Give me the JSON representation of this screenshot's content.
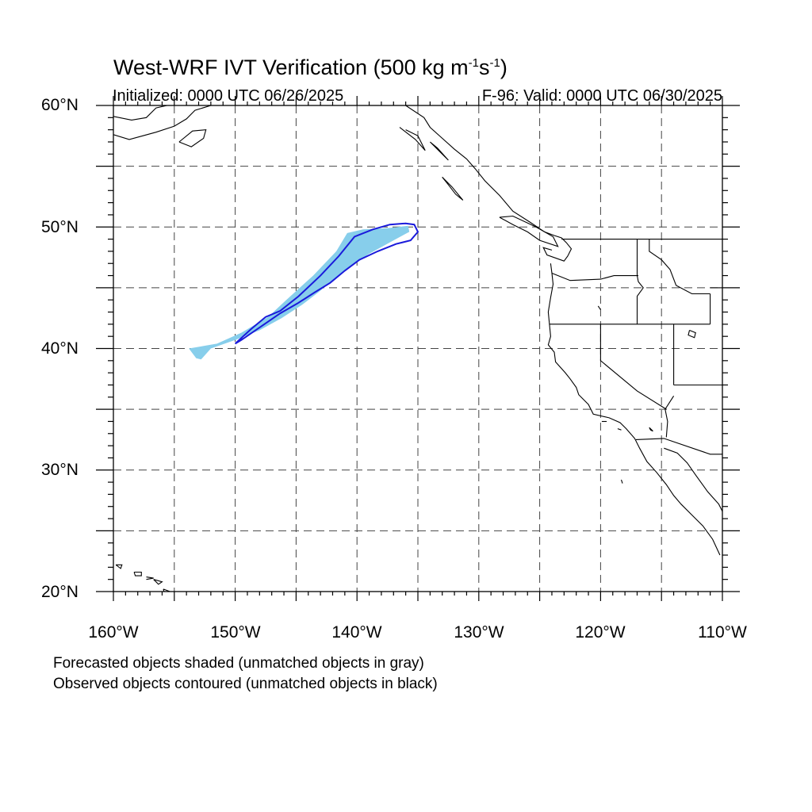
{
  "title": {
    "text": "West-WRF IVT Verification (500 kg m",
    "exp1": "-1",
    "mid": "s",
    "exp2": "-1",
    "end": ")"
  },
  "init_label": "Initialized: 0000 UTC 06/26/2025",
  "valid_label": "F-96: Valid: 0000 UTC 06/30/2025",
  "map": {
    "lon_range": [
      -160,
      -110
    ],
    "lat_range": [
      20,
      60
    ],
    "lat_ticks": [
      {
        "value": 60,
        "label": "60°N"
      },
      {
        "value": 50,
        "label": "50°N"
      },
      {
        "value": 40,
        "label": "40°N"
      },
      {
        "value": 30,
        "label": "30°N"
      },
      {
        "value": 20,
        "label": "20°N"
      }
    ],
    "lon_ticks": [
      {
        "value": -160,
        "label": "160°W"
      },
      {
        "value": -150,
        "label": "150°W"
      },
      {
        "value": -140,
        "label": "140°W"
      },
      {
        "value": -130,
        "label": "130°W"
      },
      {
        "value": -120,
        "label": "120°W"
      },
      {
        "value": -110,
        "label": "110°W"
      }
    ],
    "grid_lon": [
      -155,
      -150,
      -145,
      -140,
      -135,
      -130,
      -125,
      -120,
      -115
    ],
    "grid_lat": [
      25,
      30,
      35,
      40,
      45,
      50,
      55
    ],
    "forecast_color": "#87CEEB",
    "observed_color": "#1a1adb",
    "forecast_object": [
      [
        -153.8,
        40.0
      ],
      [
        -151.5,
        40.4
      ],
      [
        -149.5,
        41.3
      ],
      [
        -147.3,
        42.6
      ],
      [
        -145.8,
        44.0
      ],
      [
        -143.6,
        46.0
      ],
      [
        -141.7,
        48.0
      ],
      [
        -140.8,
        49.5
      ],
      [
        -139.5,
        49.8
      ],
      [
        -137.5,
        49.9
      ],
      [
        -135.8,
        50.1
      ],
      [
        -135.7,
        49.6
      ],
      [
        -137.0,
        48.9
      ],
      [
        -139.0,
        47.8
      ],
      [
        -140.5,
        46.8
      ],
      [
        -142.0,
        45.6
      ],
      [
        -143.2,
        44.6
      ],
      [
        -144.5,
        43.6
      ],
      [
        -146.2,
        42.5
      ],
      [
        -148.0,
        41.5
      ],
      [
        -150.0,
        40.7
      ],
      [
        -152.0,
        40.0
      ],
      [
        -152.8,
        39.1
      ],
      [
        -153.2,
        39.2
      ]
    ],
    "observed_object": [
      [
        -150.0,
        40.4
      ],
      [
        -148.7,
        41.6
      ],
      [
        -147.5,
        42.6
      ],
      [
        -146.3,
        43.1
      ],
      [
        -144.8,
        44.3
      ],
      [
        -143.0,
        46.0
      ],
      [
        -141.5,
        47.6
      ],
      [
        -140.2,
        49.2
      ],
      [
        -138.7,
        49.8
      ],
      [
        -137.3,
        50.2
      ],
      [
        -136.0,
        50.3
      ],
      [
        -135.3,
        50.2
      ],
      [
        -135.0,
        49.6
      ],
      [
        -135.6,
        48.9
      ],
      [
        -136.8,
        48.6
      ],
      [
        -138.3,
        48.0
      ],
      [
        -139.8,
        47.3
      ],
      [
        -141.0,
        46.4
      ],
      [
        -142.2,
        45.4
      ],
      [
        -143.5,
        44.6
      ],
      [
        -144.9,
        43.7
      ],
      [
        -146.3,
        42.9
      ],
      [
        -147.9,
        41.8
      ],
      [
        -149.5,
        40.7
      ],
      [
        -150.0,
        40.4
      ]
    ]
  },
  "notes": {
    "line1": "Forecasted objects shaded (unmatched objects in gray)",
    "line2": "Observed objects contoured (unmatched objects in black)"
  }
}
